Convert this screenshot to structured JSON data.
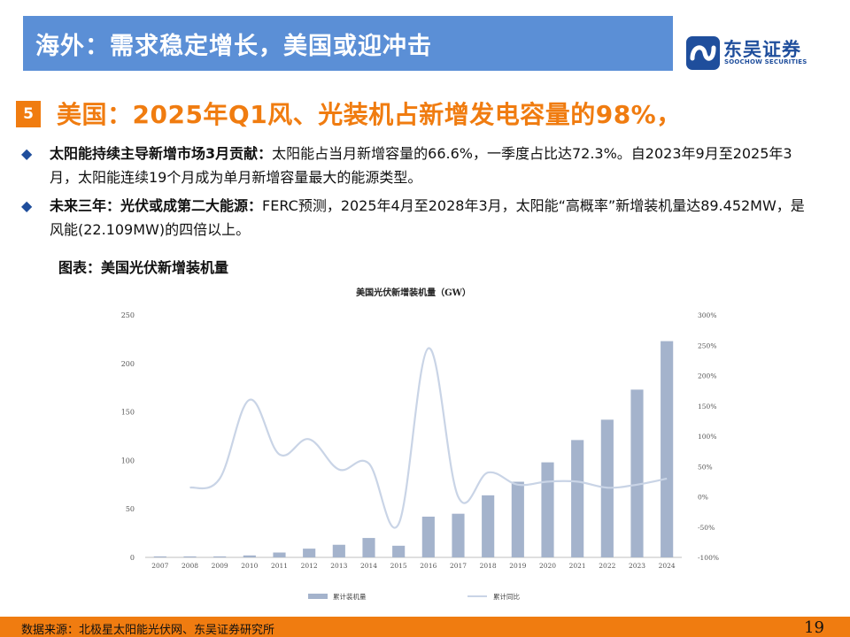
{
  "header": {
    "title": "海外：需求稳定增长，美国或迎冲击",
    "logo_cn": "东吴证券",
    "logo_en": "SOOCHOW SECURITIES"
  },
  "section": {
    "number": "5",
    "title": "美国：2025年Q1风、光装机占新增发电容量的98%，"
  },
  "bullets": [
    {
      "bold": "太阳能持续主导新增市场3月贡献：",
      "text": "太阳能占当月新增容量的66.6%，一季度占比达72.3%。自2023年9月至2025年3月，太阳能连续19个月成为单月新增容量最大的能源类型。"
    },
    {
      "bold": "未来三年：光伏或成第二大能源：",
      "text": "FERC预测，2025年4月至2028年3月，太阳能“高概率”新增装机量达89.452MW，是风能(22.109MW)的四倍以上。"
    }
  ],
  "chart_heading": "图表：美国光伏新增装机量",
  "chart_data": {
    "type": "bar",
    "title": "美国光伏新增装机量（GW）",
    "categories": [
      "2007",
      "2008",
      "2009",
      "2010",
      "2011",
      "2012",
      "2013",
      "2014",
      "2015",
      "2016",
      "2017",
      "2018",
      "2019",
      "2020",
      "2021",
      "2022",
      "2023",
      "2024"
    ],
    "series": [
      {
        "name": "累计装机量",
        "type": "bar",
        "axis": "left",
        "color": "#a4b3cc",
        "values": [
          1,
          1,
          1,
          2,
          5,
          9,
          13,
          20,
          12,
          42,
          45,
          64,
          78,
          98,
          121,
          142,
          173,
          223
        ]
      },
      {
        "name": "累计同比",
        "type": "line",
        "axis": "right",
        "color": "#c9d4e6",
        "values": [
          null,
          15,
          30,
          160,
          70,
          95,
          45,
          55,
          -45,
          245,
          0,
          40,
          20,
          25,
          25,
          15,
          20,
          30
        ]
      }
    ],
    "ylim_left": [
      0,
      250
    ],
    "yticks_left": [
      0,
      50,
      100,
      150,
      200,
      250
    ],
    "ylim_right": [
      -100,
      300
    ],
    "yticks_right": [
      "-100%",
      "-50%",
      "0%",
      "50%",
      "100%",
      "150%",
      "200%",
      "250%",
      "300%"
    ],
    "grid": false,
    "legend": "bottom"
  },
  "footer": {
    "source": "数据来源：北极星太阳能光伏网、东吴证券研究所",
    "page": "19"
  },
  "colors": {
    "title_bar": "#5b8fd6",
    "accent": "#f07c10",
    "brand_blue": "#1f4e9c"
  }
}
